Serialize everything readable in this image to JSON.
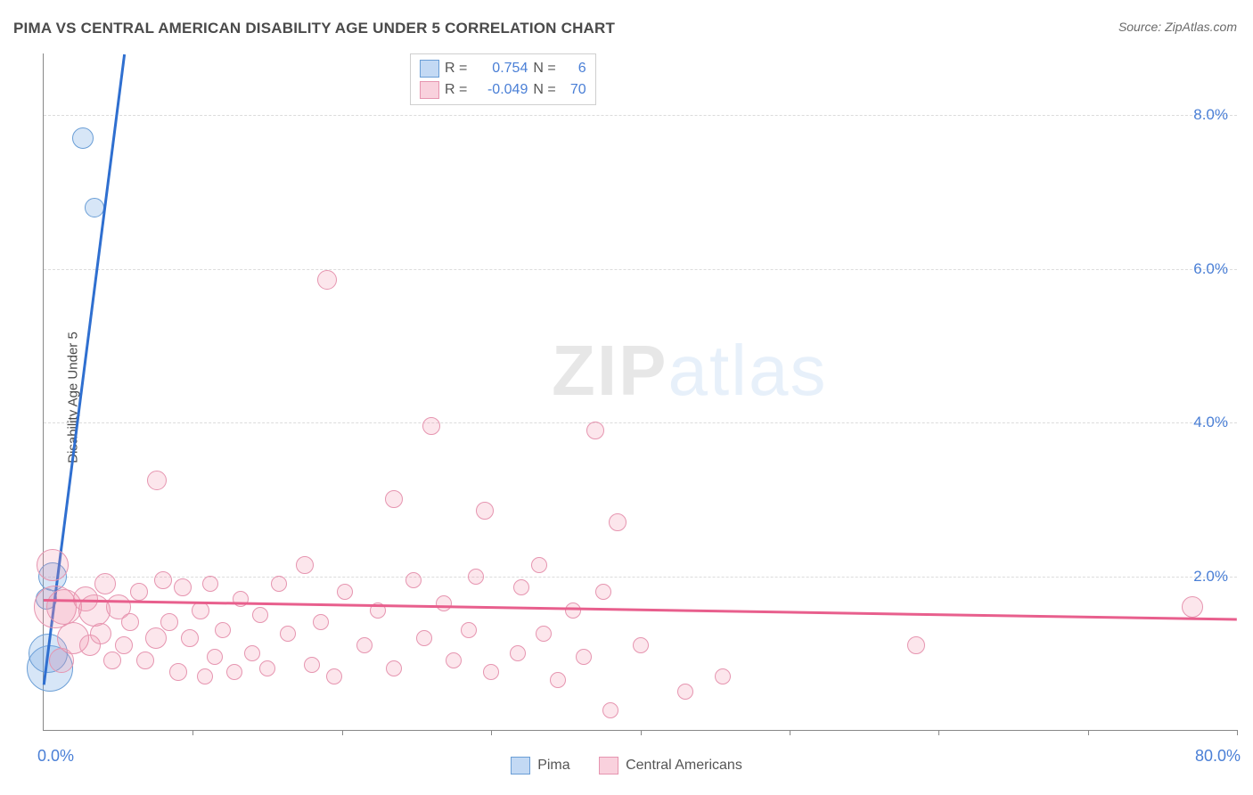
{
  "title": "PIMA VS CENTRAL AMERICAN DISABILITY AGE UNDER 5 CORRELATION CHART",
  "source_label": "Source: ZipAtlas.com",
  "ylabel": "Disability Age Under 5",
  "watermark": {
    "zip": "ZIP",
    "atlas": "atlas"
  },
  "chart": {
    "type": "scatter",
    "background": "#ffffff",
    "grid_color": "#dcdcdc",
    "axis_color": "#888888",
    "xlim": [
      0,
      80
    ],
    "ylim": [
      0,
      8.8
    ],
    "xtick_positions": [
      10,
      20,
      30,
      40,
      50,
      60,
      70,
      80
    ],
    "xaxis_labels": {
      "left": "0.0%",
      "right": "80.0%"
    },
    "ytick_labels": [
      {
        "value": 2.0,
        "label": "2.0%"
      },
      {
        "value": 4.0,
        "label": "4.0%"
      },
      {
        "value": 6.0,
        "label": "6.0%"
      },
      {
        "value": 8.0,
        "label": "8.0%"
      }
    ],
    "series": [
      {
        "name": "Pima",
        "color_fill": "rgba(122,171,230,0.30)",
        "color_stroke": "#6a9ed6",
        "trend_color": "#2f6fd0",
        "trend": {
          "x0": 0.0,
          "y0": 0.6,
          "x1": 5.4,
          "y1": 8.8
        },
        "R": "0.754",
        "N": "6",
        "points": [
          {
            "x": 0.4,
            "y": 0.8,
            "r": 26
          },
          {
            "x": 0.3,
            "y": 1.0,
            "r": 22
          },
          {
            "x": 0.2,
            "y": 1.7,
            "r": 12
          },
          {
            "x": 0.6,
            "y": 2.0,
            "r": 16
          },
          {
            "x": 3.4,
            "y": 6.8,
            "r": 11
          },
          {
            "x": 2.6,
            "y": 7.7,
            "r": 12
          }
        ]
      },
      {
        "name": "Central Americans",
        "color_fill": "rgba(240,140,170,0.22)",
        "color_stroke": "#e695b0",
        "trend_color": "#e85f8d",
        "trend": {
          "x0": 0.0,
          "y0": 1.7,
          "x1": 80.0,
          "y1": 1.45
        },
        "R": "-0.049",
        "N": "70",
        "points": [
          {
            "x": 0.8,
            "y": 1.6,
            "r": 24
          },
          {
            "x": 0.6,
            "y": 2.15,
            "r": 18
          },
          {
            "x": 1.4,
            "y": 1.6,
            "r": 20
          },
          {
            "x": 2.0,
            "y": 1.2,
            "r": 18
          },
          {
            "x": 1.2,
            "y": 0.9,
            "r": 14
          },
          {
            "x": 2.8,
            "y": 1.7,
            "r": 14
          },
          {
            "x": 3.1,
            "y": 1.1,
            "r": 12
          },
          {
            "x": 3.4,
            "y": 1.55,
            "r": 18
          },
          {
            "x": 3.8,
            "y": 1.25,
            "r": 12
          },
          {
            "x": 4.1,
            "y": 1.9,
            "r": 12
          },
          {
            "x": 4.6,
            "y": 0.9,
            "r": 10
          },
          {
            "x": 5.0,
            "y": 1.6,
            "r": 14
          },
          {
            "x": 5.4,
            "y": 1.1,
            "r": 10
          },
          {
            "x": 5.8,
            "y": 1.4,
            "r": 10
          },
          {
            "x": 6.4,
            "y": 1.8,
            "r": 10
          },
          {
            "x": 6.8,
            "y": 0.9,
            "r": 10
          },
          {
            "x": 7.5,
            "y": 1.2,
            "r": 12
          },
          {
            "x": 8.0,
            "y": 1.95,
            "r": 10
          },
          {
            "x": 8.4,
            "y": 1.4,
            "r": 10
          },
          {
            "x": 9.0,
            "y": 0.75,
            "r": 10
          },
          {
            "x": 9.3,
            "y": 1.85,
            "r": 10
          },
          {
            "x": 9.8,
            "y": 1.2,
            "r": 10
          },
          {
            "x": 10.5,
            "y": 1.55,
            "r": 10
          },
          {
            "x": 10.8,
            "y": 0.7,
            "r": 9
          },
          {
            "x": 11.2,
            "y": 1.9,
            "r": 9
          },
          {
            "x": 11.5,
            "y": 0.95,
            "r": 9
          },
          {
            "x": 7.6,
            "y": 3.25,
            "r": 11
          },
          {
            "x": 12.0,
            "y": 1.3,
            "r": 9
          },
          {
            "x": 12.8,
            "y": 0.75,
            "r": 9
          },
          {
            "x": 13.2,
            "y": 1.7,
            "r": 9
          },
          {
            "x": 14.0,
            "y": 1.0,
            "r": 9
          },
          {
            "x": 14.5,
            "y": 1.5,
            "r": 9
          },
          {
            "x": 15.0,
            "y": 0.8,
            "r": 9
          },
          {
            "x": 15.8,
            "y": 1.9,
            "r": 9
          },
          {
            "x": 16.4,
            "y": 1.25,
            "r": 9
          },
          {
            "x": 17.5,
            "y": 2.15,
            "r": 10
          },
          {
            "x": 18.0,
            "y": 0.85,
            "r": 9
          },
          {
            "x": 18.6,
            "y": 1.4,
            "r": 9
          },
          {
            "x": 19.5,
            "y": 0.7,
            "r": 9
          },
          {
            "x": 19.0,
            "y": 5.85,
            "r": 11
          },
          {
            "x": 20.2,
            "y": 1.8,
            "r": 9
          },
          {
            "x": 21.5,
            "y": 1.1,
            "r": 9
          },
          {
            "x": 22.4,
            "y": 1.55,
            "r": 9
          },
          {
            "x": 23.5,
            "y": 0.8,
            "r": 9
          },
          {
            "x": 23.5,
            "y": 3.0,
            "r": 10
          },
          {
            "x": 24.8,
            "y": 1.95,
            "r": 9
          },
          {
            "x": 25.5,
            "y": 1.2,
            "r": 9
          },
          {
            "x": 26.0,
            "y": 3.95,
            "r": 10
          },
          {
            "x": 26.8,
            "y": 1.65,
            "r": 9
          },
          {
            "x": 27.5,
            "y": 0.9,
            "r": 9
          },
          {
            "x": 28.5,
            "y": 1.3,
            "r": 9
          },
          {
            "x": 29.0,
            "y": 2.0,
            "r": 9
          },
          {
            "x": 29.6,
            "y": 2.85,
            "r": 10
          },
          {
            "x": 30.0,
            "y": 0.75,
            "r": 9
          },
          {
            "x": 31.8,
            "y": 1.0,
            "r": 9
          },
          {
            "x": 32.0,
            "y": 1.85,
            "r": 9
          },
          {
            "x": 33.5,
            "y": 1.25,
            "r": 9
          },
          {
            "x": 33.2,
            "y": 2.15,
            "r": 9
          },
          {
            "x": 34.5,
            "y": 0.65,
            "r": 9
          },
          {
            "x": 35.5,
            "y": 1.55,
            "r": 9
          },
          {
            "x": 36.2,
            "y": 0.95,
            "r": 9
          },
          {
            "x": 37.5,
            "y": 1.8,
            "r": 9
          },
          {
            "x": 37.0,
            "y": 3.9,
            "r": 10
          },
          {
            "x": 38.0,
            "y": 0.25,
            "r": 9
          },
          {
            "x": 38.5,
            "y": 2.7,
            "r": 10
          },
          {
            "x": 40.0,
            "y": 1.1,
            "r": 9
          },
          {
            "x": 43.0,
            "y": 0.5,
            "r": 9
          },
          {
            "x": 45.5,
            "y": 0.7,
            "r": 9
          },
          {
            "x": 58.5,
            "y": 1.1,
            "r": 10
          },
          {
            "x": 77.0,
            "y": 1.6,
            "r": 12
          }
        ]
      }
    ]
  },
  "legend_top_rows": [
    {
      "swatch": "blue",
      "R_label": "R =",
      "R_val": "0.754",
      "N_label": "N =",
      "N_val": "6"
    },
    {
      "swatch": "pink",
      "R_label": "R =",
      "R_val": "-0.049",
      "N_label": "N =",
      "N_val": "70"
    }
  ],
  "legend_bottom": [
    {
      "swatch": "blue",
      "label": "Pima"
    },
    {
      "swatch": "pink",
      "label": "Central Americans"
    }
  ]
}
